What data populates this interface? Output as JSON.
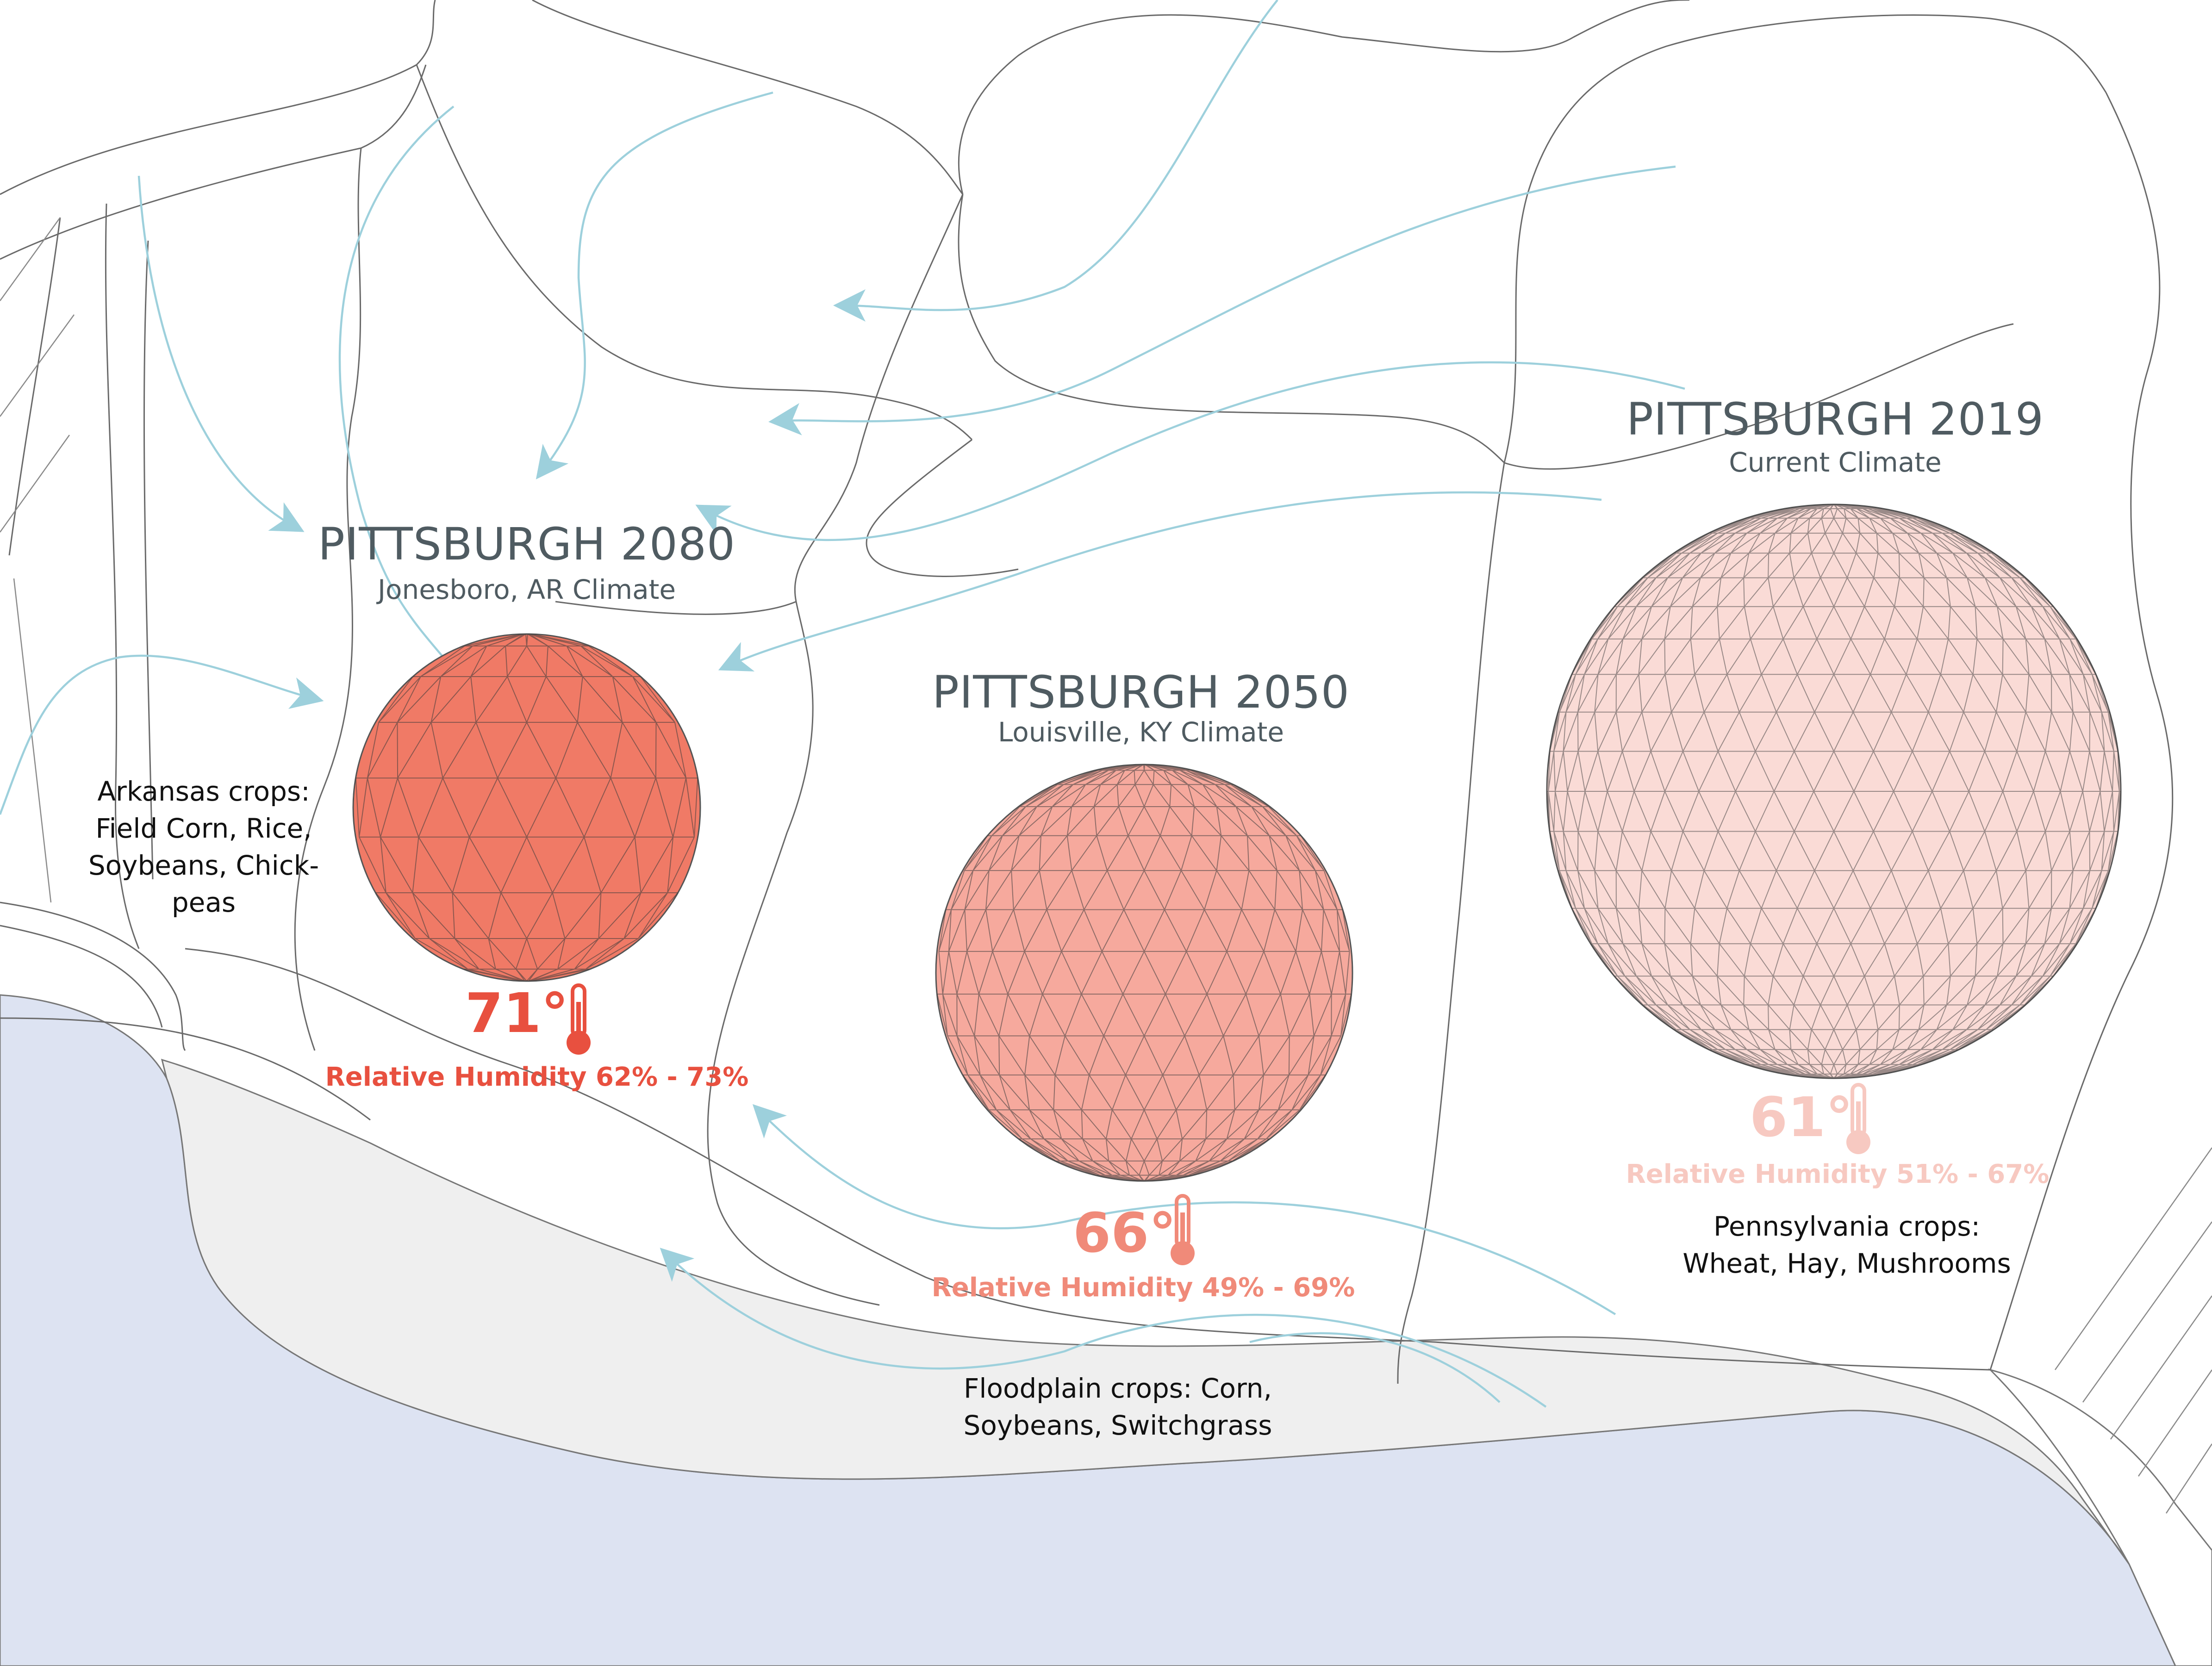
{
  "colors": {
    "hot": "#e8503f",
    "warm": "#f07a66",
    "mild": "#f6c3bb",
    "title": "#4f5b61",
    "wind": "#9dd0dc",
    "river": "#dde3f2",
    "floodplain": "#efefef",
    "contour": "#666666"
  },
  "domes": [
    {
      "id": "pgh-2080",
      "title": "PITTSBURGH 2080",
      "subtitle": "Jonesboro, AR Climate",
      "temperature": "71°",
      "humidity": "Relative Humidity 62% - 73%",
      "color": "#f07a66",
      "text_color": "#e8503f"
    },
    {
      "id": "pgh-2050",
      "title": "PITTSBURGH 2050",
      "subtitle": "Louisville, KY Climate",
      "temperature": "66°",
      "humidity": "Relative Humidity 49% - 69%",
      "color": "#f6a99d",
      "text_color": "#f08a79"
    },
    {
      "id": "pgh-2019",
      "title": "PITTSBURGH 2019",
      "subtitle": "Current Climate",
      "temperature": "61°",
      "humidity": "Relative Humidity 51% - 67%",
      "color": "#fadbd6",
      "text_color": "#f7c9c1"
    }
  ],
  "crops": {
    "arkansas": "Arkansas crops:\nField Corn, Rice,\nSoybeans, Chick-\npeas",
    "floodplain": "Floodplain crops: Corn,\nSoybeans, Switchgrass",
    "pennsylvania": "Pennsylvania crops:\nWheat, Hay, Mushrooms"
  },
  "icons": {
    "thermometer": "thermometer-icon",
    "wind": "wind-arrow-icon",
    "dome": "geodesic-dome-icon"
  }
}
